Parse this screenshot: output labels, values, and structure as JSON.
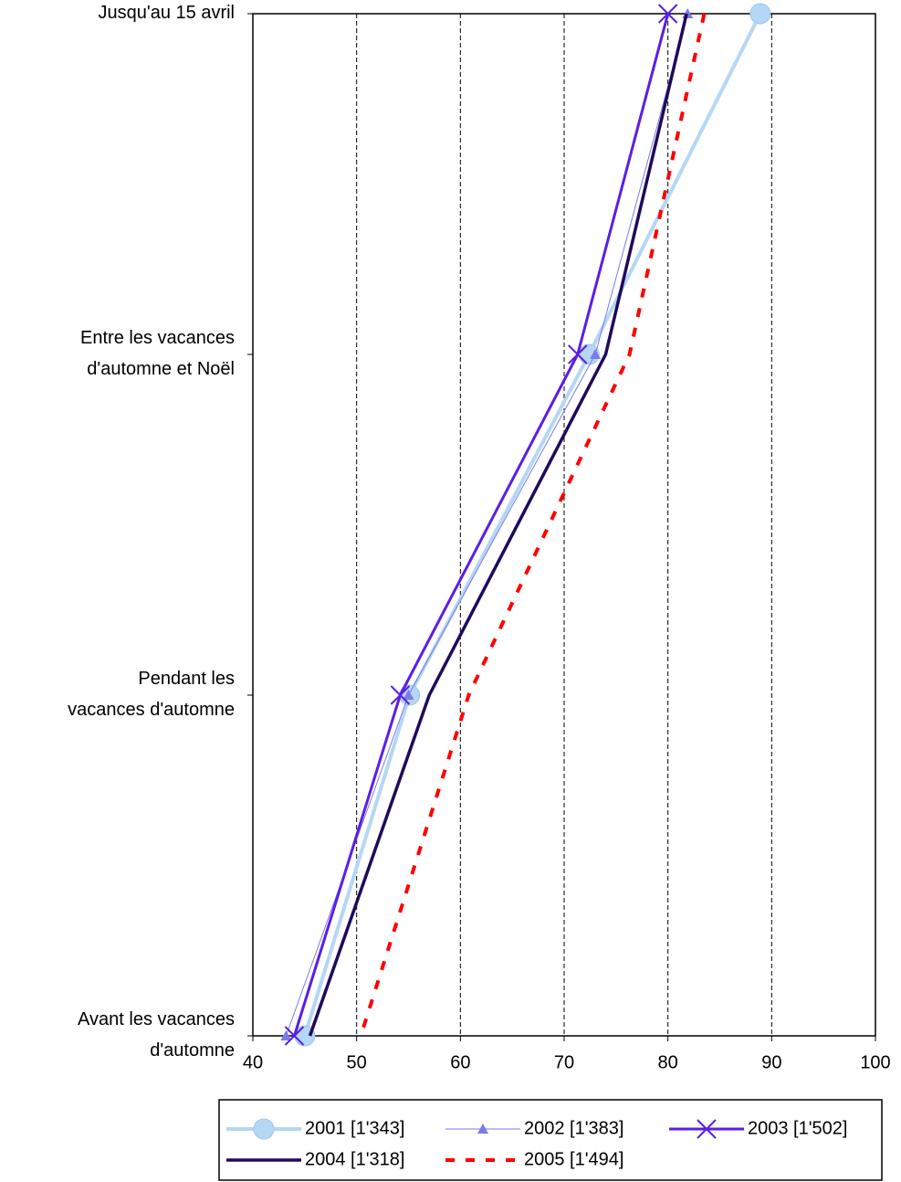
{
  "chart_data": {
    "type": "line",
    "orientation": "horizontal",
    "categories": [
      "Jusqu'au 15 avril",
      "Entre les vacances\nd'automne et Noël",
      "Pendant les\nvacances d'automne",
      "Avant les vacances\nd'automne"
    ],
    "xlim": [
      40,
      100
    ],
    "xticks": [
      40,
      50,
      60,
      70,
      80,
      90,
      100
    ],
    "grid": true,
    "legend": "bottom",
    "series": [
      {
        "name": "2001 [1'343]",
        "color": "#b4d7f5",
        "width": 4,
        "marker": "circle",
        "values": [
          88.9,
          72.4,
          55.1,
          45.0
        ]
      },
      {
        "name": "2002 [1'383]",
        "color": "#7b7be8",
        "width": 1,
        "marker": "triangle",
        "values": [
          81.9,
          73.0,
          55.0,
          43.2
        ]
      },
      {
        "name": "2003 [1'502]",
        "color": "#5a1ee6",
        "width": 3,
        "marker": "x",
        "values": [
          80.0,
          71.3,
          54.2,
          44.0
        ]
      },
      {
        "name": "2004 [1'318]",
        "color": "#1f0a5c",
        "width": 3.5,
        "values": [
          81.8,
          74.0,
          57.0,
          45.5
        ]
      },
      {
        "name": "2005 [1'494]",
        "color": "#ff0000",
        "width": 4,
        "dash": "10 12",
        "values": [
          83.5,
          76.3,
          60.8,
          50.4
        ]
      }
    ]
  }
}
